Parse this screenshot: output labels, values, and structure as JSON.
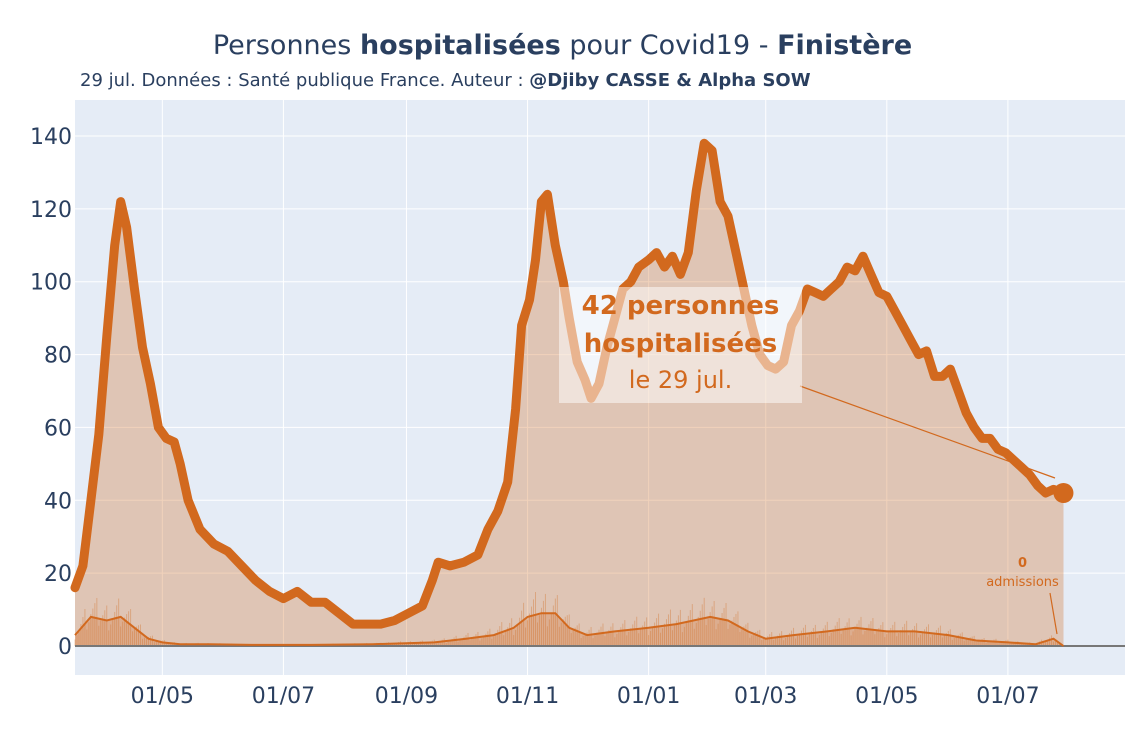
{
  "title": {
    "part1": "Personnes ",
    "part2": "hospitalisées",
    "part3": " pour Covid19 - ",
    "part4": "Finistère"
  },
  "subtitle": {
    "part1": "29 jul. Données : Santé publique France. Auteur : ",
    "part2": "@Djiby CASSE & Alpha SOW"
  },
  "annotation": {
    "line1": "42 personnes",
    "line2": "hospitalisées",
    "line3": "le 29 jul."
  },
  "admissions_annotation": {
    "value": "0",
    "label": "admissions"
  },
  "colors": {
    "line": "#d2691e",
    "fill": "rgba(210,105,30,0.3)",
    "plot_bg": "#e5ecf6",
    "grid": "#ffffff",
    "text": "#2a3f5f"
  },
  "chart_data": {
    "type": "area",
    "ylim": [
      0,
      140
    ],
    "yticks": [
      "0",
      "20",
      "40",
      "60",
      "80",
      "100",
      "120",
      "140"
    ],
    "xticks": [
      "01/05",
      "01/07",
      "01/09",
      "01/11",
      "01/01",
      "01/03",
      "01/05",
      "01/07"
    ],
    "xtick_dates": [
      "2020-05-01",
      "2020-07-01",
      "2020-09-01",
      "2020-11-01",
      "2021-01-01",
      "2021-03-01",
      "2021-05-01",
      "2021-07-01"
    ],
    "x_range": [
      "2020-03-18",
      "2021-08-29"
    ],
    "grid": true,
    "series": [
      {
        "name": "hospitalisations",
        "points": [
          [
            "2020-03-18",
            16
          ],
          [
            "2020-03-22",
            22
          ],
          [
            "2020-03-26",
            40
          ],
          [
            "2020-03-30",
            58
          ],
          [
            "2020-04-03",
            85
          ],
          [
            "2020-04-07",
            110
          ],
          [
            "2020-04-10",
            122
          ],
          [
            "2020-04-13",
            115
          ],
          [
            "2020-04-17",
            98
          ],
          [
            "2020-04-21",
            82
          ],
          [
            "2020-04-25",
            72
          ],
          [
            "2020-04-29",
            60
          ],
          [
            "2020-05-03",
            57
          ],
          [
            "2020-05-07",
            56
          ],
          [
            "2020-05-10",
            50
          ],
          [
            "2020-05-14",
            40
          ],
          [
            "2020-05-20",
            32
          ],
          [
            "2020-05-27",
            28
          ],
          [
            "2020-06-03",
            26
          ],
          [
            "2020-06-10",
            22
          ],
          [
            "2020-06-17",
            18
          ],
          [
            "2020-06-24",
            15
          ],
          [
            "2020-07-01",
            13
          ],
          [
            "2020-07-08",
            15
          ],
          [
            "2020-07-15",
            12
          ],
          [
            "2020-07-22",
            12
          ],
          [
            "2020-07-29",
            9
          ],
          [
            "2020-08-05",
            6
          ],
          [
            "2020-08-12",
            6
          ],
          [
            "2020-08-19",
            6
          ],
          [
            "2020-08-26",
            7
          ],
          [
            "2020-09-02",
            9
          ],
          [
            "2020-09-09",
            11
          ],
          [
            "2020-09-14",
            18
          ],
          [
            "2020-09-17",
            23
          ],
          [
            "2020-09-23",
            22
          ],
          [
            "2020-09-30",
            23
          ],
          [
            "2020-10-07",
            25
          ],
          [
            "2020-10-12",
            32
          ],
          [
            "2020-10-17",
            37
          ],
          [
            "2020-10-22",
            45
          ],
          [
            "2020-10-26",
            65
          ],
          [
            "2020-10-29",
            88
          ],
          [
            "2020-11-02",
            95
          ],
          [
            "2020-11-05",
            106
          ],
          [
            "2020-11-08",
            122
          ],
          [
            "2020-11-11",
            124
          ],
          [
            "2020-11-15",
            110
          ],
          [
            "2020-11-19",
            100
          ],
          [
            "2020-11-22",
            90
          ],
          [
            "2020-11-26",
            78
          ],
          [
            "2020-11-30",
            73
          ],
          [
            "2020-12-03",
            68
          ],
          [
            "2020-12-07",
            72
          ],
          [
            "2020-12-11",
            82
          ],
          [
            "2020-12-15",
            90
          ],
          [
            "2020-12-19",
            98
          ],
          [
            "2020-12-23",
            100
          ],
          [
            "2020-12-27",
            104
          ],
          [
            "2021-01-01",
            106
          ],
          [
            "2021-01-05",
            108
          ],
          [
            "2021-01-09",
            104
          ],
          [
            "2021-01-13",
            107
          ],
          [
            "2021-01-17",
            102
          ],
          [
            "2021-01-21",
            108
          ],
          [
            "2021-01-25",
            125
          ],
          [
            "2021-01-29",
            138
          ],
          [
            "2021-02-02",
            136
          ],
          [
            "2021-02-06",
            122
          ],
          [
            "2021-02-10",
            118
          ],
          [
            "2021-02-14",
            108
          ],
          [
            "2021-02-18",
            98
          ],
          [
            "2021-02-22",
            88
          ],
          [
            "2021-02-26",
            80
          ],
          [
            "2021-03-02",
            77
          ],
          [
            "2021-03-06",
            76
          ],
          [
            "2021-03-10",
            78
          ],
          [
            "2021-03-14",
            88
          ],
          [
            "2021-03-18",
            92
          ],
          [
            "2021-03-22",
            98
          ],
          [
            "2021-03-26",
            97
          ],
          [
            "2021-03-30",
            96
          ],
          [
            "2021-04-03",
            98
          ],
          [
            "2021-04-07",
            100
          ],
          [
            "2021-04-11",
            104
          ],
          [
            "2021-04-15",
            103
          ],
          [
            "2021-04-19",
            107
          ],
          [
            "2021-04-23",
            102
          ],
          [
            "2021-04-27",
            97
          ],
          [
            "2021-05-01",
            96
          ],
          [
            "2021-05-05",
            92
          ],
          [
            "2021-05-09",
            88
          ],
          [
            "2021-05-13",
            84
          ],
          [
            "2021-05-17",
            80
          ],
          [
            "2021-05-21",
            81
          ],
          [
            "2021-05-25",
            74
          ],
          [
            "2021-05-29",
            74
          ],
          [
            "2021-06-02",
            76
          ],
          [
            "2021-06-06",
            70
          ],
          [
            "2021-06-10",
            64
          ],
          [
            "2021-06-14",
            60
          ],
          [
            "2021-06-18",
            57
          ],
          [
            "2021-06-22",
            57
          ],
          [
            "2021-06-26",
            54
          ],
          [
            "2021-06-30",
            53
          ],
          [
            "2021-07-04",
            51
          ],
          [
            "2021-07-08",
            49
          ],
          [
            "2021-07-12",
            47
          ],
          [
            "2021-07-16",
            44
          ],
          [
            "2021-07-20",
            42
          ],
          [
            "2021-07-24",
            43
          ],
          [
            "2021-07-29",
            42
          ]
        ]
      },
      {
        "name": "admissions",
        "points": [
          [
            "2020-03-18",
            3
          ],
          [
            "2020-03-26",
            8
          ],
          [
            "2020-04-03",
            7
          ],
          [
            "2020-04-10",
            8
          ],
          [
            "2020-04-17",
            5
          ],
          [
            "2020-04-24",
            2
          ],
          [
            "2020-05-01",
            1
          ],
          [
            "2020-05-10",
            0.5
          ],
          [
            "2020-05-25",
            0.5
          ],
          [
            "2020-06-15",
            0.3
          ],
          [
            "2020-07-15",
            0.3
          ],
          [
            "2020-08-15",
            0.5
          ],
          [
            "2020-09-15",
            1
          ],
          [
            "2020-10-01",
            2
          ],
          [
            "2020-10-15",
            3
          ],
          [
            "2020-10-25",
            5
          ],
          [
            "2020-11-01",
            8
          ],
          [
            "2020-11-08",
            9
          ],
          [
            "2020-11-15",
            9
          ],
          [
            "2020-11-22",
            5
          ],
          [
            "2020-12-01",
            3
          ],
          [
            "2020-12-15",
            4
          ],
          [
            "2021-01-01",
            5
          ],
          [
            "2021-01-15",
            6
          ],
          [
            "2021-02-01",
            8
          ],
          [
            "2021-02-10",
            7
          ],
          [
            "2021-02-20",
            4
          ],
          [
            "2021-03-01",
            2
          ],
          [
            "2021-03-15",
            3
          ],
          [
            "2021-04-01",
            4
          ],
          [
            "2021-04-15",
            5
          ],
          [
            "2021-05-01",
            4
          ],
          [
            "2021-05-15",
            4
          ],
          [
            "2021-06-01",
            3
          ],
          [
            "2021-06-15",
            1.5
          ],
          [
            "2021-07-01",
            1
          ],
          [
            "2021-07-15",
            0.5
          ],
          [
            "2021-07-24",
            2
          ],
          [
            "2021-07-29",
            0
          ]
        ]
      }
    ]
  }
}
